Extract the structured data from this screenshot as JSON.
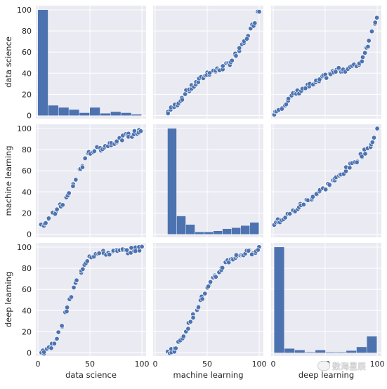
{
  "chart_data": {
    "type": "pairplot",
    "variables": [
      "data science",
      "machine learning",
      "deep learning"
    ],
    "axis_limits": {
      "x": [
        -2,
        104
      ],
      "y": [
        -3,
        104
      ]
    },
    "ticks": [
      0,
      50,
      100
    ],
    "y_ticks": [
      0,
      20,
      40,
      60,
      80,
      100
    ],
    "grid": true,
    "colors": {
      "panel_background": "#eaeaf2",
      "mark": "#4c72b0",
      "grid": "#ffffff",
      "marker_edge": "#ffffff"
    },
    "histograms": [
      {
        "variable": "data science",
        "bin_range": [
          0,
          100
        ],
        "relative_heights": [
          100,
          9.5,
          7.5,
          5.5,
          2.5,
          7.5,
          2,
          3.5,
          2.5,
          1
        ]
      },
      {
        "variable": "machine learning",
        "bin_range": [
          12,
          100
        ],
        "relative_heights": [
          100,
          17,
          9,
          2,
          2,
          3,
          5,
          6,
          8,
          11
        ]
      },
      {
        "variable": "deep learning",
        "bin_range": [
          1,
          100
        ],
        "relative_heights": [
          100,
          4,
          2.5,
          0.5,
          2.5,
          0.5,
          0.5,
          2,
          5.5,
          15.5
        ]
      }
    ],
    "scatter_panels": [
      {
        "row": 0,
        "col": 1,
        "x": "machine learning",
        "y": "data science",
        "curve_x": [
          12,
          20,
          30,
          40,
          50,
          60,
          70,
          80,
          85,
          90,
          95,
          100
        ],
        "curve_y": [
          3,
          10,
          22,
          31,
          40,
          43,
          48,
          60,
          68,
          78,
          88,
          100
        ],
        "n": 60
      },
      {
        "row": 0,
        "col": 2,
        "x": "deep learning",
        "y": "data science",
        "curve_x": [
          1,
          10,
          20,
          30,
          40,
          50,
          60,
          70,
          80,
          85,
          88,
          90,
          93,
          95,
          97,
          100
        ],
        "curve_y": [
          3,
          10,
          20,
          26,
          30,
          37,
          42,
          44,
          47,
          52,
          60,
          65,
          72,
          80,
          86,
          96
        ],
        "n": 60
      },
      {
        "row": 1,
        "col": 0,
        "x": "data science",
        "y": "machine learning",
        "curve_x": [
          3,
          10,
          20,
          30,
          40,
          50,
          60,
          70,
          80,
          90,
          100
        ],
        "curve_y": [
          8,
          14,
          24,
          38,
          60,
          78,
          81,
          86,
          91,
          94,
          99
        ],
        "n": 60
      },
      {
        "row": 1,
        "col": 2,
        "x": "deep learning",
        "y": "machine learning",
        "curve_x": [
          1,
          10,
          20,
          30,
          40,
          50,
          60,
          70,
          80,
          85,
          90,
          95,
          100
        ],
        "curve_y": [
          10,
          15,
          22,
          30,
          37,
          44,
          52,
          61,
          70,
          75,
          80,
          86,
          99
        ],
        "n": 60
      },
      {
        "row": 2,
        "col": 0,
        "x": "data science",
        "y": "deep learning",
        "curve_x": [
          2,
          8,
          12,
          16,
          20,
          25,
          30,
          35,
          40,
          45,
          50,
          60,
          70,
          80,
          90,
          100
        ],
        "curve_y": [
          1,
          2,
          5,
          10,
          18,
          32,
          48,
          62,
          74,
          85,
          92,
          94,
          95,
          96,
          97,
          99
        ],
        "n": 60
      },
      {
        "row": 2,
        "col": 1,
        "x": "machine learning",
        "y": "deep learning",
        "curve_x": [
          12,
          18,
          22,
          26,
          30,
          35,
          40,
          45,
          50,
          55,
          60,
          65,
          70,
          75,
          80,
          85,
          90,
          95,
          100
        ],
        "curve_y": [
          1,
          3,
          8,
          15,
          22,
          32,
          42,
          52,
          60,
          68,
          75,
          82,
          87,
          90,
          92,
          94,
          95,
          96,
          99
        ],
        "n": 60
      }
    ]
  },
  "watermark": {
    "text": "数海星辰"
  }
}
